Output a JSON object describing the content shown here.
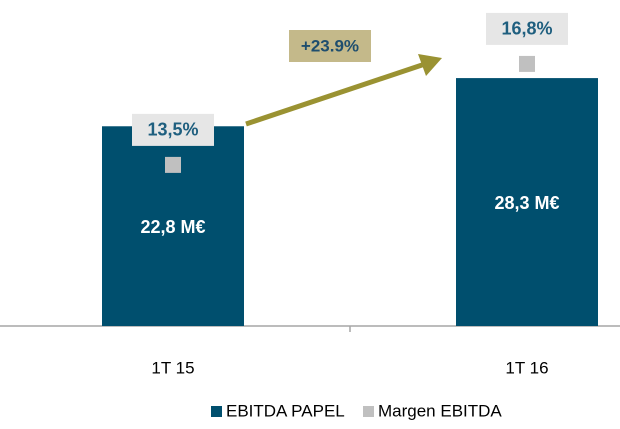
{
  "chart_data": {
    "type": "bar",
    "categories": [
      "1T 15",
      "1T 16"
    ],
    "series": [
      {
        "name": "EBITDA PAPEL",
        "color": "#004f6e",
        "values": [
          22.8,
          28.3
        ],
        "value_labels": [
          "22,8 M€",
          "28,3 M€"
        ]
      },
      {
        "name": "Margen EBITDA",
        "color": "#c0c0c0",
        "values": [
          13.5,
          16.8
        ],
        "value_labels": [
          "13,5%",
          "16,8%"
        ],
        "axis": "y2"
      }
    ],
    "annotations": [
      "+23.9%"
    ]
  }
}
